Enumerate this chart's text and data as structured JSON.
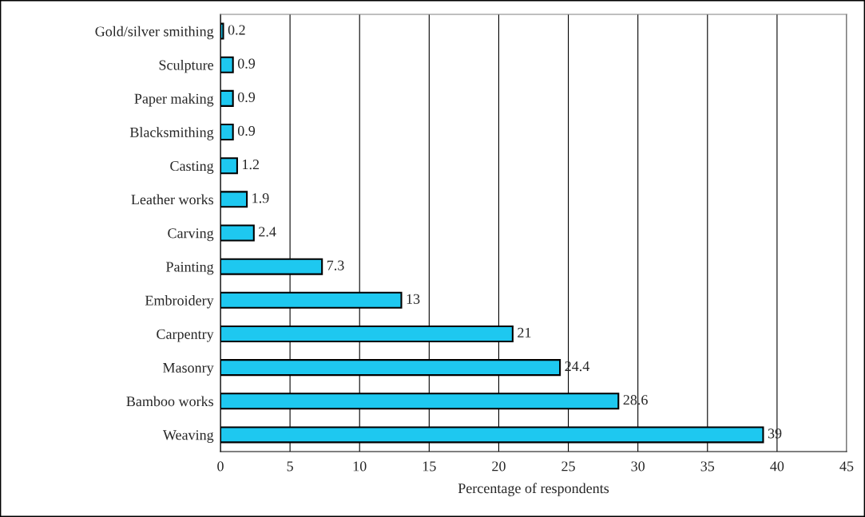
{
  "chart_data": {
    "type": "bar",
    "orientation": "horizontal",
    "xlabel": "Percentage of respondents",
    "categories": [
      "Gold/silver smithing",
      "Sculpture",
      "Paper making",
      "Blacksmithing",
      "Casting",
      "Leather works",
      "Carving",
      "Painting",
      "Embroidery",
      "Carpentry",
      "Masonry",
      "Bamboo works",
      "Weaving"
    ],
    "values": [
      0.2,
      0.9,
      0.9,
      0.9,
      1.2,
      1.9,
      2.4,
      7.3,
      13,
      21,
      24.4,
      28.6,
      39
    ],
    "color": "#1ec8f0",
    "data_labels": true,
    "xlim": [
      0,
      45
    ],
    "xticks": [
      0,
      5,
      10,
      15,
      20,
      25,
      30,
      35,
      40,
      45
    ],
    "grid": "x"
  }
}
